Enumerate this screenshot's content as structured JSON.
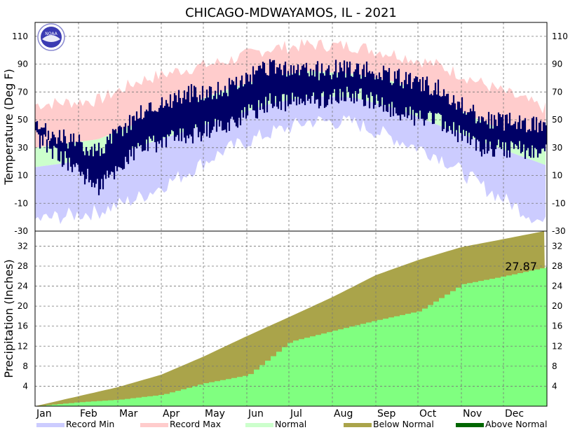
{
  "title": "CHICAGO-MDWAYAMOS, IL - 2021",
  "logo_text": "NOAA",
  "colors": {
    "record_min": "#ccccff",
    "record_max": "#ffcccc",
    "normal": "#ccffcc",
    "observed_temp": "#000066",
    "below_normal": "#aaa44a",
    "above_normal": "#006600",
    "observed_precip": "#80ff80"
  },
  "ytd_precip_label": "27.87",
  "legend": [
    {
      "label": "Record Min",
      "color": "#ccccff"
    },
    {
      "label": "Record Max",
      "color": "#ffcccc"
    },
    {
      "label": "Normal",
      "color": "#ccffcc"
    },
    {
      "label": "Below Normal",
      "color": "#aaa44a"
    },
    {
      "label": "Above Normal",
      "color": "#006600"
    }
  ],
  "chart_data": [
    {
      "type": "area",
      "panel": "temperature",
      "ylabel": "Temperature (Deg F)",
      "ylim": [
        -30,
        120
      ],
      "yticks": [
        -30,
        -10,
        10,
        30,
        50,
        70,
        90,
        110
      ],
      "x_categories": [
        "Jan",
        "Feb",
        "Mar",
        "Apr",
        "May",
        "Jun",
        "Jul",
        "Aug",
        "Sep",
        "Oct",
        "Nov",
        "Dec"
      ],
      "grid": true,
      "series": [
        {
          "name": "Record Max",
          "monthly_values": [
            62,
            64,
            78,
            86,
            92,
            101,
            104,
            103,
            97,
            89,
            76,
            64
          ]
        },
        {
          "name": "Normal",
          "monthly_high": [
            32,
            36,
            48,
            60,
            71,
            81,
            85,
            83,
            77,
            64,
            49,
            36
          ],
          "monthly_low": [
            18,
            22,
            31,
            41,
            51,
            61,
            67,
            66,
            58,
            46,
            34,
            23
          ]
        },
        {
          "name": "Record Min",
          "monthly_values": [
            -20,
            -16,
            -6,
            10,
            28,
            40,
            49,
            48,
            36,
            24,
            2,
            -16
          ]
        },
        {
          "name": "Observed",
          "monthly_high": [
            38,
            28,
            55,
            68,
            72,
            87,
            85,
            87,
            80,
            72,
            50,
            48
          ],
          "monthly_low": [
            26,
            2,
            30,
            38,
            46,
            62,
            64,
            68,
            56,
            48,
            30,
            28
          ]
        }
      ]
    },
    {
      "type": "area",
      "panel": "precipitation",
      "ylabel": "Precipitation (Inches)",
      "ylim": [
        0,
        35
      ],
      "yticks": [
        4,
        8,
        12,
        16,
        20,
        24,
        28,
        32
      ],
      "x_categories": [
        "Jan",
        "Feb",
        "Mar",
        "Apr",
        "May",
        "Jun",
        "Jul",
        "Aug",
        "Sep",
        "Oct",
        "Nov",
        "Dec"
      ],
      "grid": true,
      "annotation": "27.87",
      "series": [
        {
          "name": "Normal (cumulative)",
          "month_end_values": [
            2.0,
            3.8,
            6.3,
            9.9,
            14.0,
            17.8,
            21.8,
            26.2,
            29.2,
            31.8,
            33.4,
            35.1
          ]
        },
        {
          "name": "Observed (cumulative)",
          "month_end_values": [
            0.8,
            1.3,
            2.3,
            4.6,
            6.2,
            12.9,
            15.1,
            17.2,
            19.0,
            24.4,
            26.0,
            27.87
          ]
        }
      ]
    }
  ]
}
